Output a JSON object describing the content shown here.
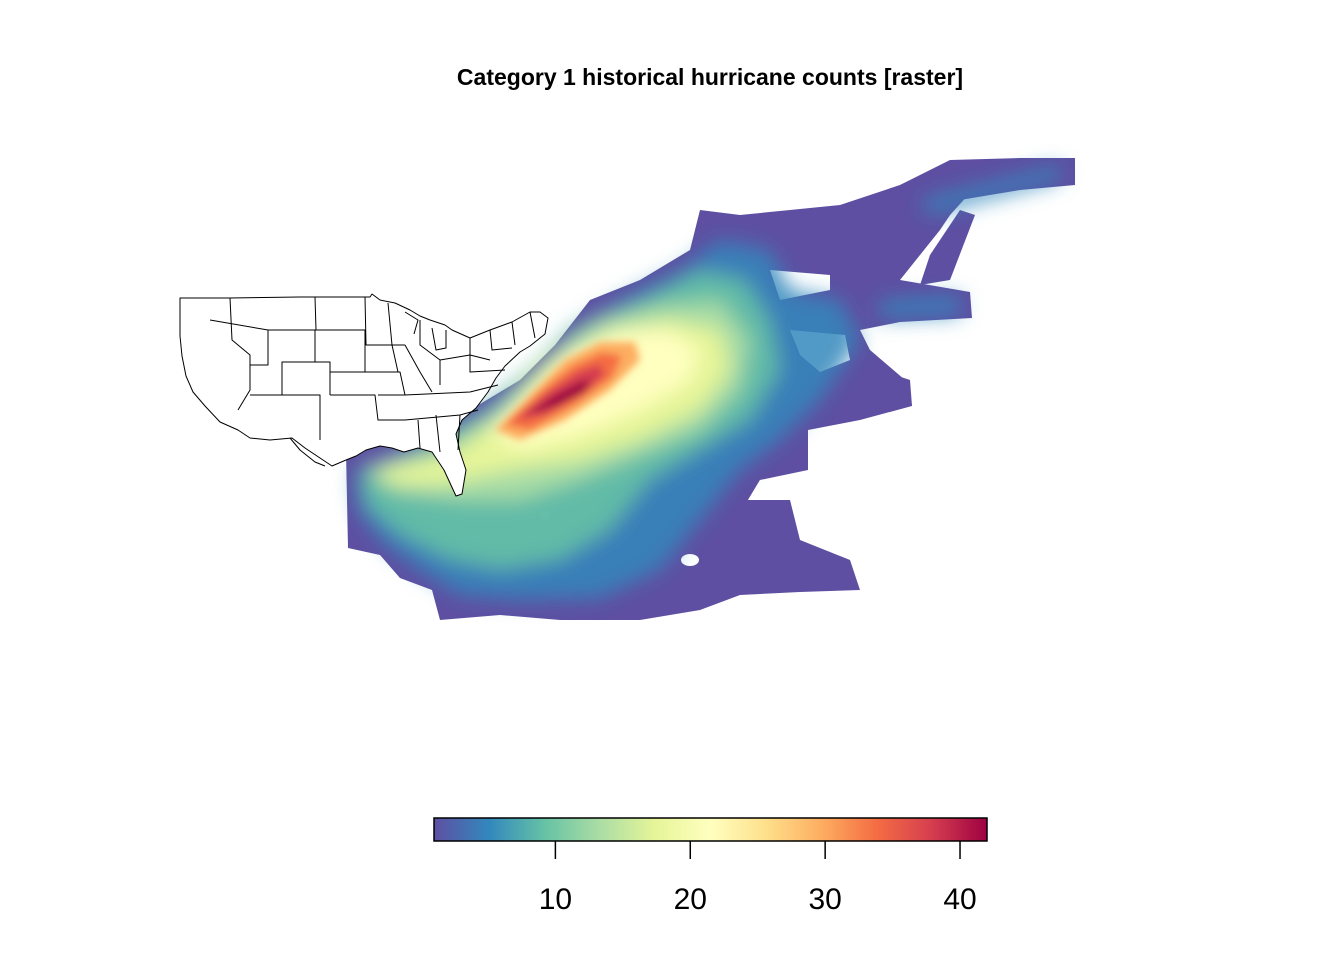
{
  "title": "Category 1 historical hurricane counts [raster]",
  "palette": [
    "#5E4FA2",
    "#3288BD",
    "#66C2A5",
    "#ABDDA4",
    "#E6F598",
    "#FFFFBF",
    "#FEE08B",
    "#FDAE61",
    "#F46D43",
    "#D53E4F",
    "#9E0142"
  ],
  "chart_data": {
    "type": "heatmap",
    "title": "Category 1 historical hurricane counts [raster]",
    "legend": {
      "placement": "bottom",
      "min": 1,
      "max": 42,
      "ticks": [
        10,
        20,
        30,
        40
      ],
      "tick_labels": [
        "10",
        "20",
        "30",
        "40"
      ]
    },
    "basemap": "US state boundaries",
    "peak_count": 42
  }
}
